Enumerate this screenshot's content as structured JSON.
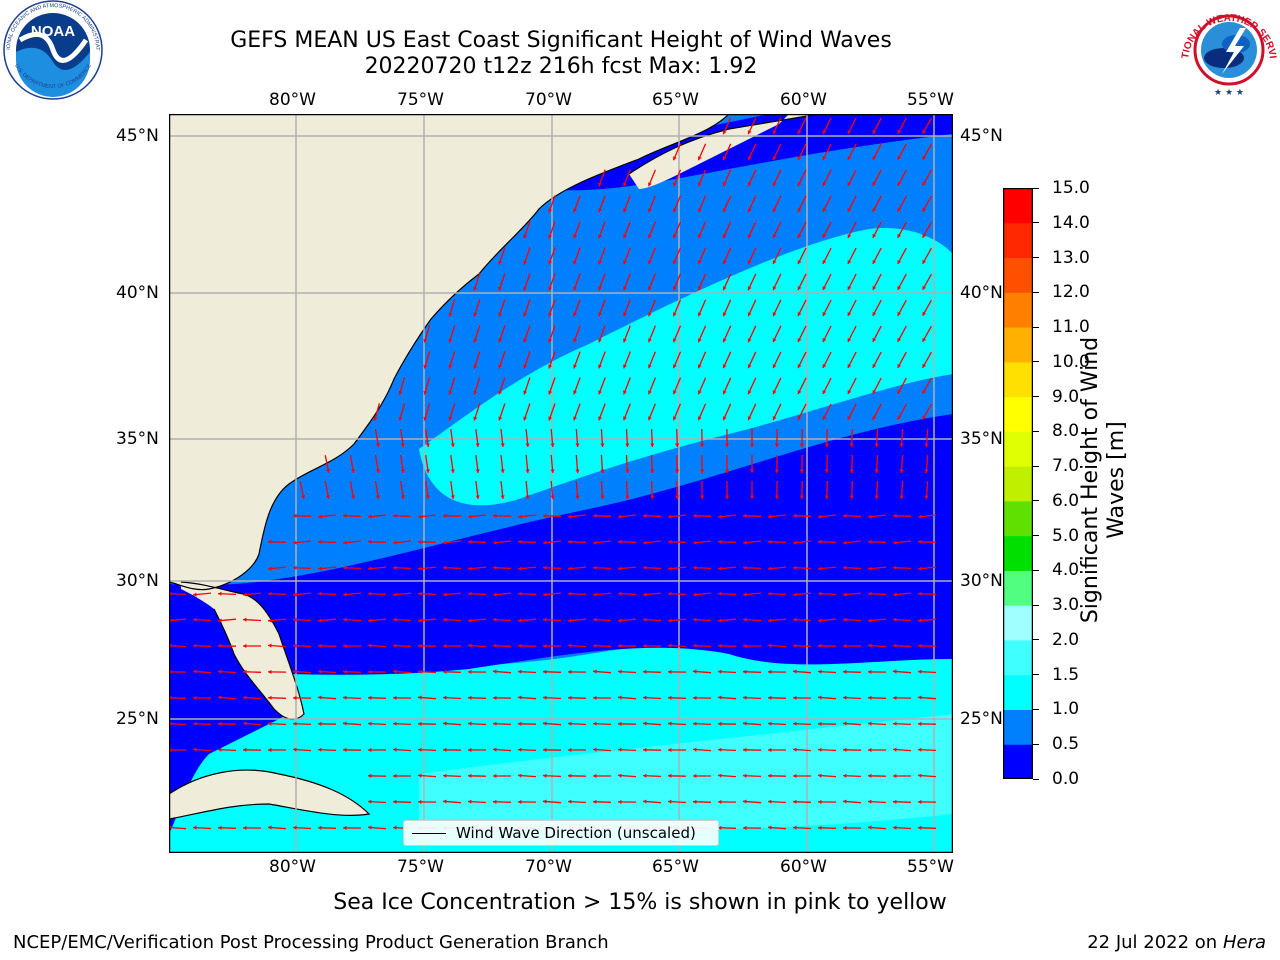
{
  "title": {
    "line1": "GEFS MEAN US East Coast Significant Height of Wind Waves",
    "line2": "20220720 t12z 216h fcst   Max: 1.92"
  },
  "map": {
    "lon_ticks": [
      "80°W",
      "75°W",
      "70°W",
      "65°W",
      "60°W",
      "55°W"
    ],
    "lat_ticks": [
      "45°N",
      "40°N",
      "35°N",
      "30°N",
      "25°N"
    ],
    "lon_range": [
      -85,
      -54
    ],
    "lat_range": [
      20.5,
      46
    ],
    "colors": {
      "land": "#efedda",
      "coast": "#000000",
      "grid": "#b0b0b0",
      "arrow": "#ff0000"
    }
  },
  "legend": {
    "label": "Wind Wave Direction (unscaled)"
  },
  "colorbar": {
    "label_line1": "Significant Height of Wind",
    "label_line2": "Waves [m]",
    "ticks": [
      "0.0",
      "0.5",
      "1.0",
      "1.5",
      "2.0",
      "3.0",
      "4.0",
      "5.0",
      "6.0",
      "7.0",
      "8.0",
      "9.0",
      "10.0",
      "11.0",
      "12.0",
      "13.0",
      "14.0",
      "15.0"
    ],
    "colors": [
      "#0000ff",
      "#0080ff",
      "#00ffff",
      "#40ffff",
      "#a0ffff",
      "#50ff80",
      "#00e000",
      "#60e000",
      "#c0f000",
      "#e0ff00",
      "#ffff00",
      "#ffe000",
      "#ffb000",
      "#ff8000",
      "#ff5000",
      "#ff2800",
      "#ff0000"
    ]
  },
  "note": "Sea Ice Concentration > 15% is shown in pink to yellow",
  "footer": {
    "left": "NCEP/EMC/Verification Post Processing Product Generation Branch",
    "date": "22 Jul 2022 on ",
    "machine": "Hera"
  },
  "logos": {
    "noaa_text": "NOAA",
    "noaa_ring": "NATIONAL OCEANIC AND ATMOSPHERIC ADMINISTRATION",
    "noaa_ring_bottom": "U.S. DEPARTMENT OF COMMERCE",
    "nws_ring": "NATIONAL WEATHER SERVICE"
  }
}
